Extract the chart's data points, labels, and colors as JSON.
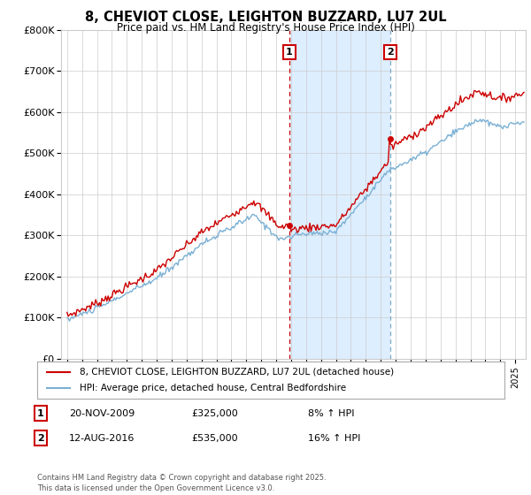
{
  "title": "8, CHEVIOT CLOSE, LEIGHTON BUZZARD, LU7 2UL",
  "subtitle": "Price paid vs. HM Land Registry's House Price Index (HPI)",
  "ylabel_ticks": [
    "£0",
    "£100K",
    "£200K",
    "£300K",
    "£400K",
    "£500K",
    "£600K",
    "£700K",
    "£800K"
  ],
  "ytick_values": [
    0,
    100000,
    200000,
    300000,
    400000,
    500000,
    600000,
    700000,
    800000
  ],
  "ylim": [
    0,
    800000
  ],
  "xlim_start": 1994.6,
  "xlim_end": 2025.7,
  "ann1_x": 2009.88,
  "ann1_y": 325000,
  "ann2_x": 2016.62,
  "ann2_y": 535000,
  "ann1_date": "20-NOV-2009",
  "ann1_price": "£325,000",
  "ann1_hpi": "8% ↑ HPI",
  "ann2_date": "12-AUG-2016",
  "ann2_price": "£535,000",
  "ann2_hpi": "16% ↑ HPI",
  "legend_line1": "8, CHEVIOT CLOSE, LEIGHTON BUZZARD, LU7 2UL (detached house)",
  "legend_line2": "HPI: Average price, detached house, Central Bedfordshire",
  "footnote": "Contains HM Land Registry data © Crown copyright and database right 2025.\nThis data is licensed under the Open Government Licence v3.0.",
  "red_color": "#cc0000",
  "blue_color": "#7ab0d4",
  "shade_color": "#ddeeff",
  "background_color": "#ffffff",
  "grid_color": "#cccccc",
  "vline1_color": "#cc0000",
  "vline2_color": "#7aaccc"
}
